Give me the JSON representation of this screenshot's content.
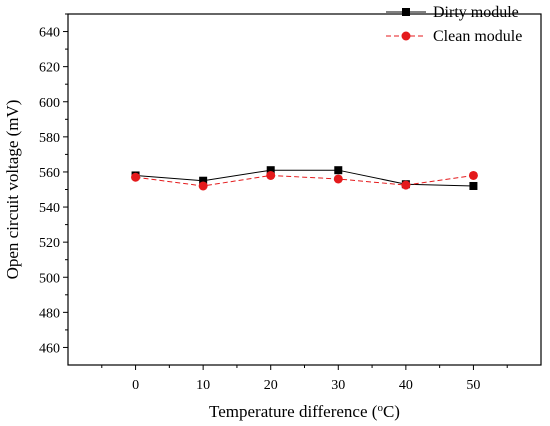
{
  "chart_data": {
    "type": "line",
    "x": [
      0,
      10,
      20,
      30,
      40,
      50
    ],
    "series": [
      {
        "name": "Dirty module",
        "values": [
          558,
          555,
          561,
          561,
          553,
          552
        ],
        "color": "#000000",
        "marker": "square",
        "line": "solid"
      },
      {
        "name": "Clean module",
        "values": [
          557,
          552,
          558,
          556,
          552.5,
          558
        ],
        "color": "#e41a1c",
        "marker": "circle",
        "line": "dashed"
      }
    ],
    "xlabel_text": "Temperature difference (",
    "xlabel_sup": "o",
    "xlabel_unit": "C)",
    "ylabel": "Open circuit voltage (mV)",
    "xlim": [
      -10,
      60
    ],
    "ylim": [
      450,
      650
    ],
    "xticks": [
      0,
      10,
      20,
      30,
      40,
      50
    ],
    "yticks": [
      460,
      480,
      500,
      520,
      540,
      560,
      580,
      600,
      620,
      640
    ],
    "grid": false,
    "legend_position": "top-right"
  }
}
